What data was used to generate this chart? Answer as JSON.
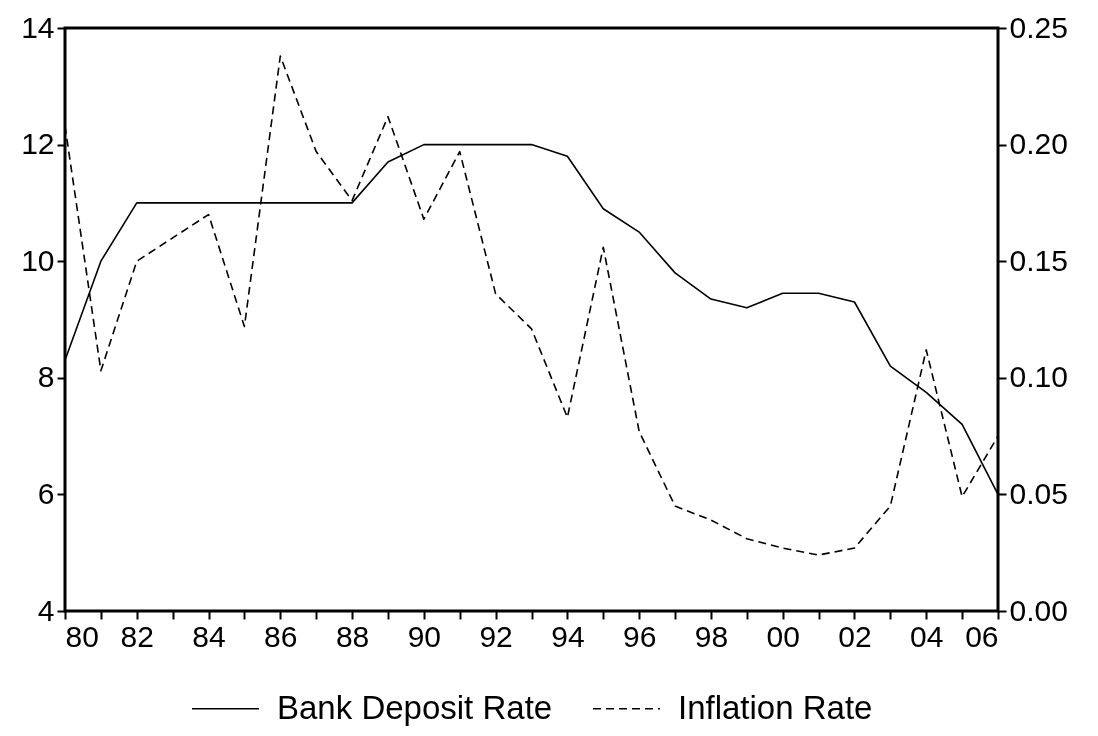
{
  "chart_data": {
    "type": "line",
    "legend": "bottom",
    "x": [
      1980,
      1981,
      1982,
      1983,
      1984,
      1985,
      1986,
      1987,
      1988,
      1989,
      1990,
      1991,
      1992,
      1993,
      1994,
      1995,
      1996,
      1997,
      1998,
      1999,
      2000,
      2001,
      2002,
      2003,
      2004,
      2005,
      2006
    ],
    "xlim": [
      1980,
      2006
    ],
    "xticks": [
      {
        "value": 1980,
        "label": "80"
      },
      {
        "value": 1981,
        "label": null
      },
      {
        "value": 1982,
        "label": "82"
      },
      {
        "value": 1983,
        "label": null
      },
      {
        "value": 1984,
        "label": "84"
      },
      {
        "value": 1985,
        "label": null
      },
      {
        "value": 1986,
        "label": "86"
      },
      {
        "value": 1987,
        "label": null
      },
      {
        "value": 1988,
        "label": "88"
      },
      {
        "value": 1989,
        "label": null
      },
      {
        "value": 1990,
        "label": "90"
      },
      {
        "value": 1991,
        "label": null
      },
      {
        "value": 1992,
        "label": "92"
      },
      {
        "value": 1993,
        "label": null
      },
      {
        "value": 1994,
        "label": "94"
      },
      {
        "value": 1995,
        "label": null
      },
      {
        "value": 1996,
        "label": "96"
      },
      {
        "value": 1997,
        "label": null
      },
      {
        "value": 1998,
        "label": "98"
      },
      {
        "value": 1999,
        "label": null
      },
      {
        "value": 2000,
        "label": "00"
      },
      {
        "value": 2001,
        "label": null
      },
      {
        "value": 2002,
        "label": "02"
      },
      {
        "value": 2003,
        "label": null
      },
      {
        "value": 2004,
        "label": "04"
      },
      {
        "value": 2005,
        "label": null
      },
      {
        "value": 2006,
        "label": "06"
      }
    ],
    "ylim": [
      4,
      14
    ],
    "yticks": [
      4,
      6,
      8,
      10,
      12,
      14
    ],
    "y2lim": [
      0,
      0.25
    ],
    "y2ticks": [
      {
        "value": 0,
        "label": "0.00"
      },
      0.05,
      {
        "value": 0.1,
        "label": "0.10"
      },
      0.15,
      {
        "value": 0.2,
        "label": "0.20"
      },
      0.25
    ],
    "series": [
      {
        "name": "Bank Deposit Rate",
        "color": "#000000",
        "line_style": "solid",
        "values": [
          8.3,
          10.0,
          11.0,
          11.0,
          11.0,
          11.0,
          11.0,
          11.0,
          11.0,
          11.7,
          12.0,
          12.0,
          12.0,
          12.0,
          11.8,
          10.9,
          10.5,
          9.8,
          9.35,
          9.2,
          9.45,
          9.45,
          9.3,
          8.2,
          7.75,
          7.2,
          6.0
        ]
      },
      {
        "name": "Inflation Rate",
        "color": "#000000",
        "line_style": "dashed",
        "axis": "y2",
        "values": [
          0.208,
          0.103,
          0.15,
          0.16,
          0.17,
          0.122,
          0.238,
          0.197,
          0.176,
          0.212,
          0.168,
          0.197,
          0.136,
          0.121,
          0.083,
          0.156,
          0.077,
          0.045,
          0.039,
          0.031,
          0.027,
          0.024,
          0.027,
          0.045,
          0.112,
          0.049,
          0.075
        ]
      }
    ]
  }
}
